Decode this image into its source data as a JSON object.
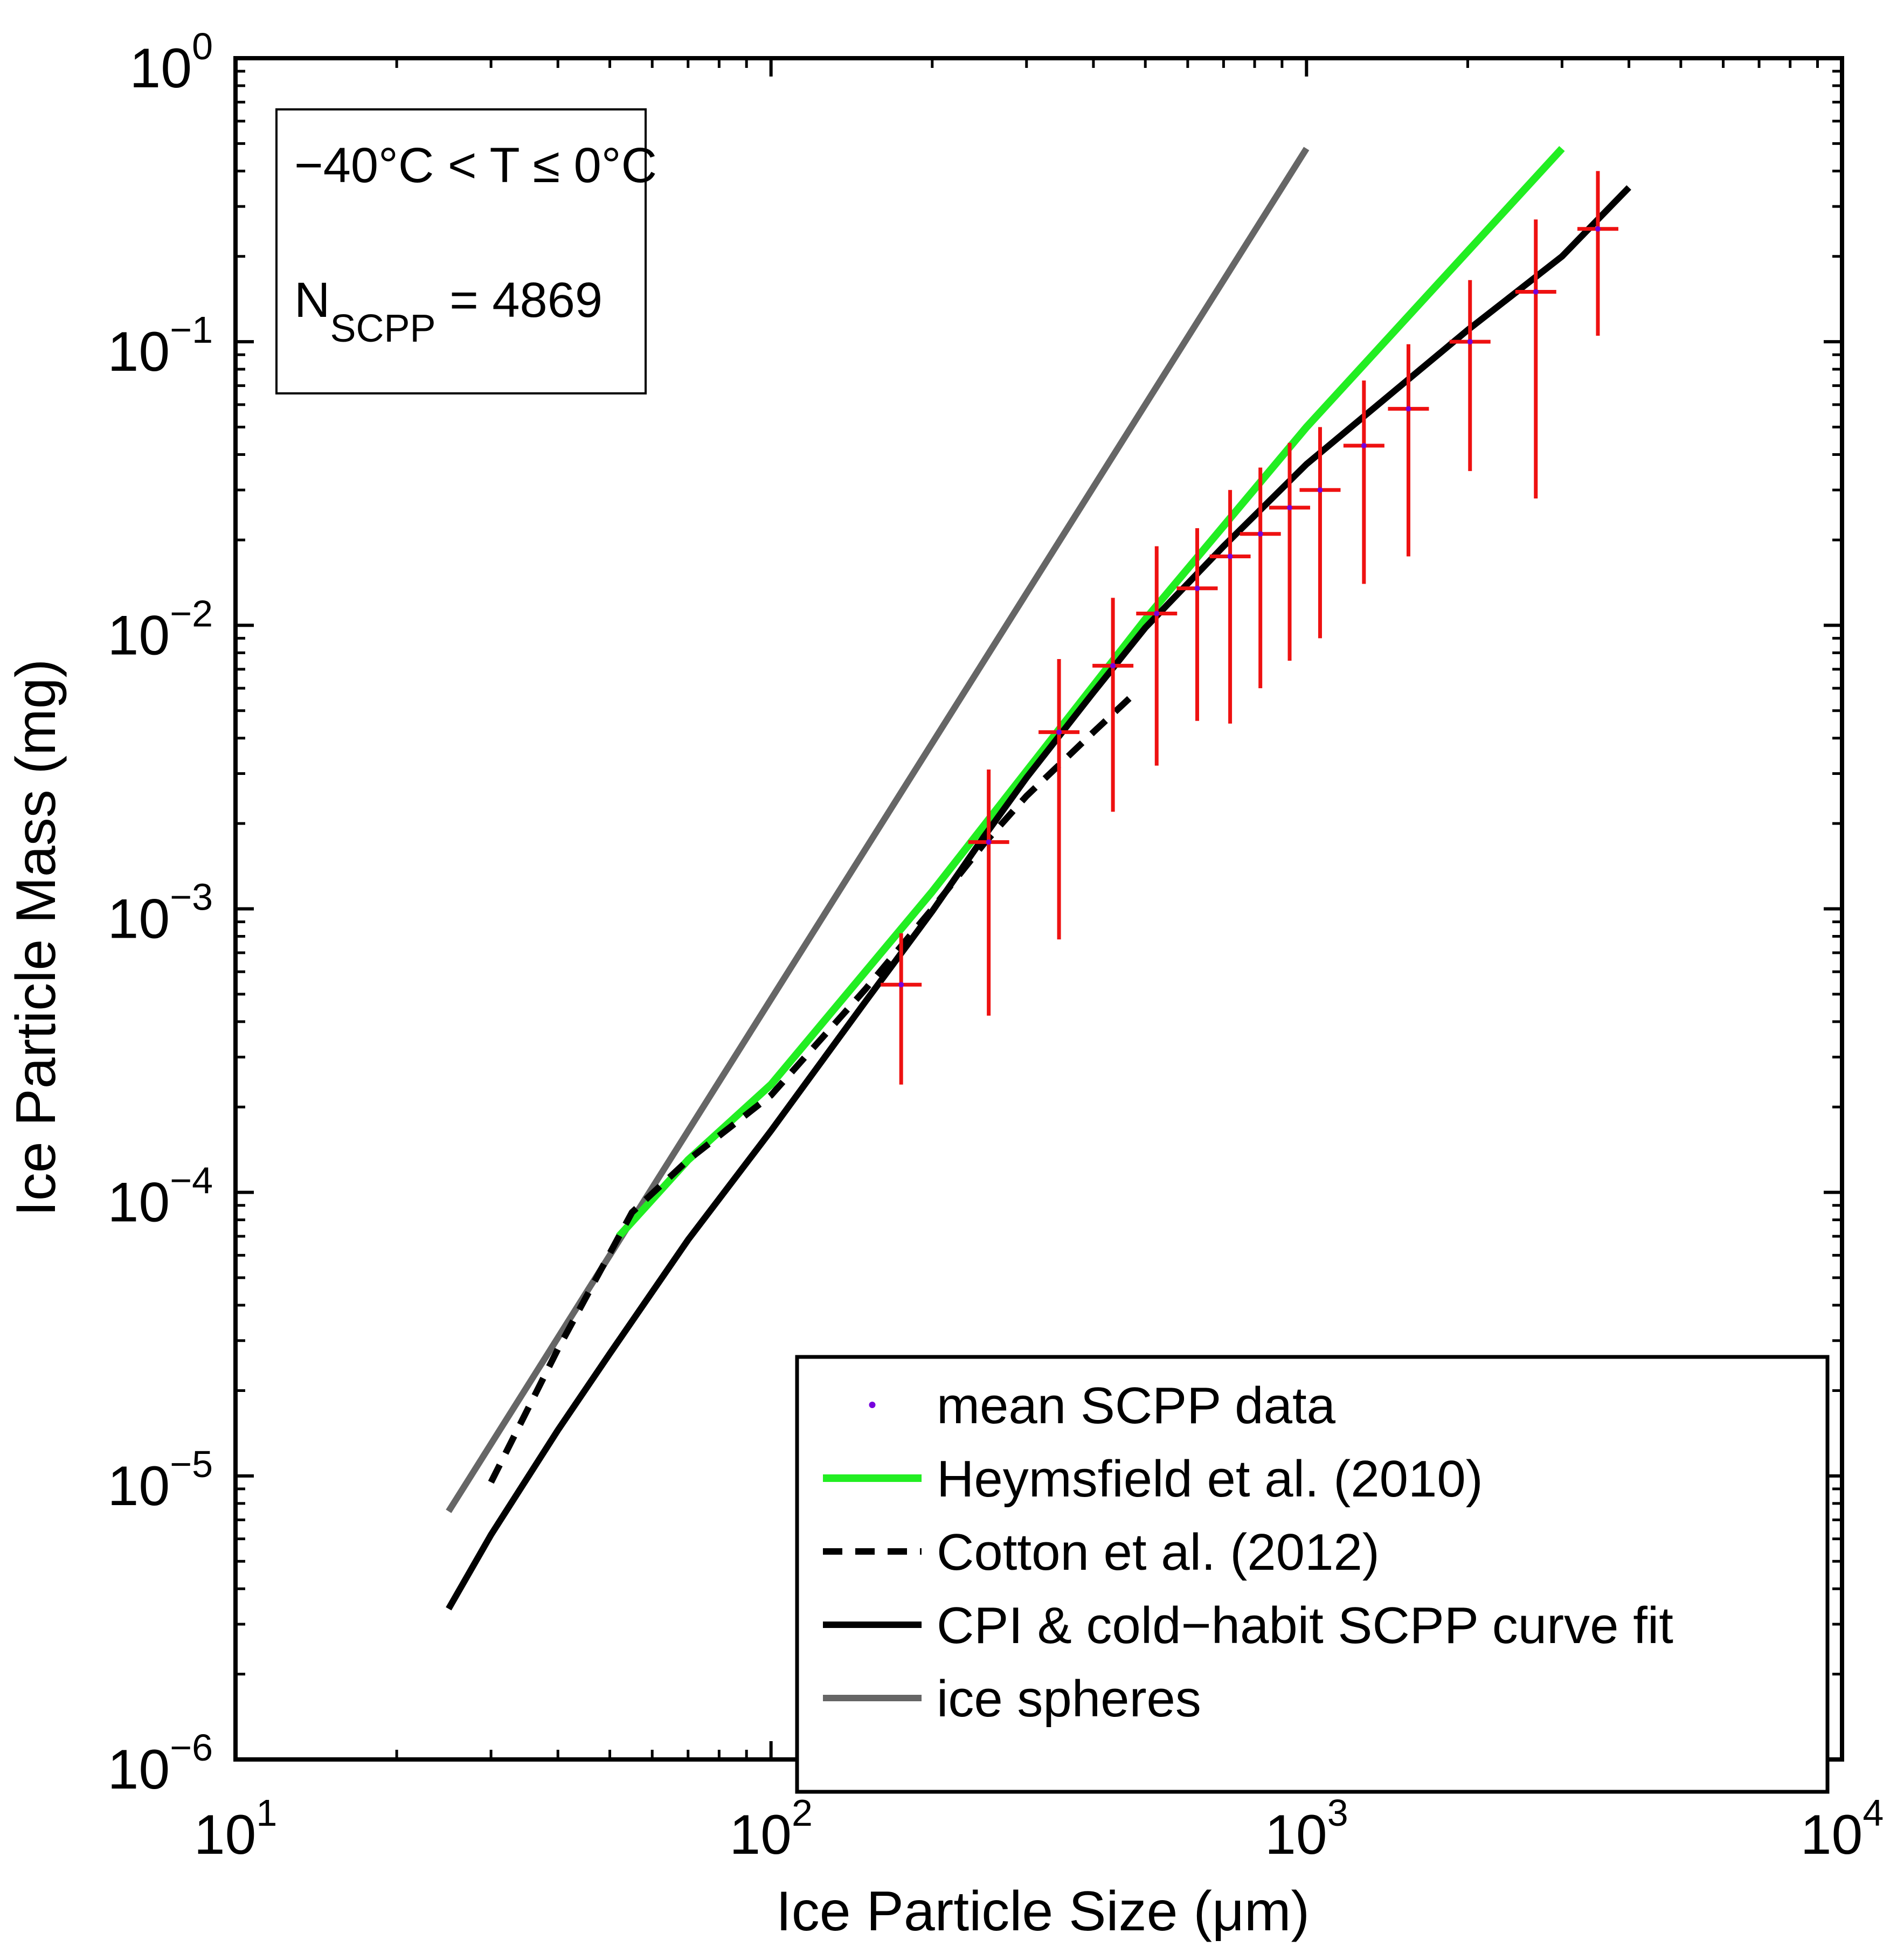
{
  "chart_data": {
    "type": "line",
    "x_scale": "log",
    "y_scale": "log",
    "xlabel": "Ice Particle Size (μm)",
    "ylabel": "Ice Particle Mass (mg)",
    "xlim": [
      10,
      10000
    ],
    "ylim": [
      1e-06,
      1
    ],
    "x_ticks": [
      {
        "value": 10,
        "base": "10",
        "exp": "1"
      },
      {
        "value": 100,
        "base": "10",
        "exp": "2"
      },
      {
        "value": 1000,
        "base": "10",
        "exp": "3"
      },
      {
        "value": 10000,
        "base": "10",
        "exp": "4"
      }
    ],
    "y_ticks": [
      {
        "value": 1e-06,
        "base": "10",
        "exp": "−6"
      },
      {
        "value": 1e-05,
        "base": "10",
        "exp": "−5"
      },
      {
        "value": 0.0001,
        "base": "10",
        "exp": "−4"
      },
      {
        "value": 0.001,
        "base": "10",
        "exp": "−3"
      },
      {
        "value": 0.01,
        "base": "10",
        "exp": "−2"
      },
      {
        "value": 0.1,
        "base": "10",
        "exp": "−1"
      },
      {
        "value": 1,
        "base": "10",
        "exp": "0"
      }
    ],
    "grid": false,
    "annotation": {
      "line1": "−40°C < T ≤ 0°C",
      "line2_prefix": "N",
      "line2_sub": "SCPP",
      "line2_suffix": " = 4869"
    },
    "legend": {
      "placement": "bottom-right",
      "entries": [
        {
          "label": "mean SCPP data",
          "style": "dot",
          "color": "#7700dd"
        },
        {
          "label": "Heymsfield et al. (2010)",
          "style": "solid",
          "color": "#22ee22"
        },
        {
          "label": "Cotton et al. (2012)",
          "style": "dashed",
          "color": "#000000"
        },
        {
          "label": "CPI & cold−habit SCPP curve fit",
          "style": "solid",
          "color": "#000000"
        },
        {
          "label": "ice spheres",
          "style": "solid",
          "color": "#666666"
        }
      ]
    },
    "series": [
      {
        "name": "ice spheres",
        "style": "solid",
        "color": "#666666",
        "points": [
          [
            25,
            7.5e-06
          ],
          [
            1000,
            0.48
          ]
        ]
      },
      {
        "name": "Heymsfield et al. (2010)",
        "style": "solid",
        "color": "#22ee22",
        "points": [
          [
            52,
            7e-05
          ],
          [
            70,
            0.00013
          ],
          [
            100,
            0.00024
          ],
          [
            200,
            0.00115
          ],
          [
            500,
            0.0105
          ],
          [
            1000,
            0.05
          ],
          [
            3000,
            0.48
          ]
        ]
      },
      {
        "name": "Cotton et al. (2012)",
        "style": "dashed",
        "color": "#000000",
        "points": [
          [
            30,
            9.5e-06
          ],
          [
            40,
            2.8e-05
          ],
          [
            55,
            8.5e-05
          ],
          [
            70,
            0.00013
          ],
          [
            100,
            0.00022
          ],
          [
            150,
            0.00052
          ],
          [
            200,
            0.001
          ],
          [
            250,
            0.0017
          ],
          [
            300,
            0.0025
          ],
          [
            350,
            0.0033
          ],
          [
            400,
            0.0042
          ],
          [
            480,
            0.0058
          ]
        ]
      },
      {
        "name": "CPI & cold−habit SCPP curve fit",
        "style": "solid",
        "color": "#000000",
        "points": [
          [
            25,
            3.4e-06
          ],
          [
            30,
            6.2e-06
          ],
          [
            40,
            1.45e-05
          ],
          [
            50,
            2.7e-05
          ],
          [
            70,
            6.8e-05
          ],
          [
            100,
            0.000165
          ],
          [
            150,
            0.00047
          ],
          [
            200,
            0.00098
          ],
          [
            250,
            0.0018
          ],
          [
            300,
            0.0029
          ],
          [
            400,
            0.0058
          ],
          [
            500,
            0.0098
          ],
          [
            700,
            0.019
          ],
          [
            1000,
            0.037
          ],
          [
            1500,
            0.07
          ],
          [
            2000,
            0.11
          ],
          [
            3000,
            0.2
          ],
          [
            4000,
            0.35
          ]
        ]
      }
    ],
    "scpp_data": {
      "name": "mean SCPP data",
      "marker_color": "#7700dd",
      "errorbar_color": "#ee1111",
      "points": [
        {
          "x": 175,
          "y": 0.00054,
          "lo": 0.00024,
          "hi": 0.00082
        },
        {
          "x": 255,
          "y": 0.00172,
          "lo": 0.00042,
          "hi": 0.0031
        },
        {
          "x": 345,
          "y": 0.0042,
          "lo": 0.00078,
          "hi": 0.0076
        },
        {
          "x": 435,
          "y": 0.0072,
          "lo": 0.0022,
          "hi": 0.0125
        },
        {
          "x": 525,
          "y": 0.011,
          "lo": 0.0032,
          "hi": 0.019
        },
        {
          "x": 625,
          "y": 0.0135,
          "lo": 0.0046,
          "hi": 0.022
        },
        {
          "x": 720,
          "y": 0.0175,
          "lo": 0.0045,
          "hi": 0.03
        },
        {
          "x": 820,
          "y": 0.021,
          "lo": 0.006,
          "hi": 0.036
        },
        {
          "x": 930,
          "y": 0.026,
          "lo": 0.0075,
          "hi": 0.044
        },
        {
          "x": 1060,
          "y": 0.03,
          "lo": 0.009,
          "hi": 0.05
        },
        {
          "x": 1280,
          "y": 0.043,
          "lo": 0.014,
          "hi": 0.073
        },
        {
          "x": 1550,
          "y": 0.058,
          "lo": 0.0175,
          "hi": 0.098
        },
        {
          "x": 2020,
          "y": 0.1,
          "lo": 0.035,
          "hi": 0.165
        },
        {
          "x": 2680,
          "y": 0.15,
          "lo": 0.028,
          "hi": 0.27
        },
        {
          "x": 3500,
          "y": 0.25,
          "lo": 0.105,
          "hi": 0.4
        }
      ]
    }
  }
}
